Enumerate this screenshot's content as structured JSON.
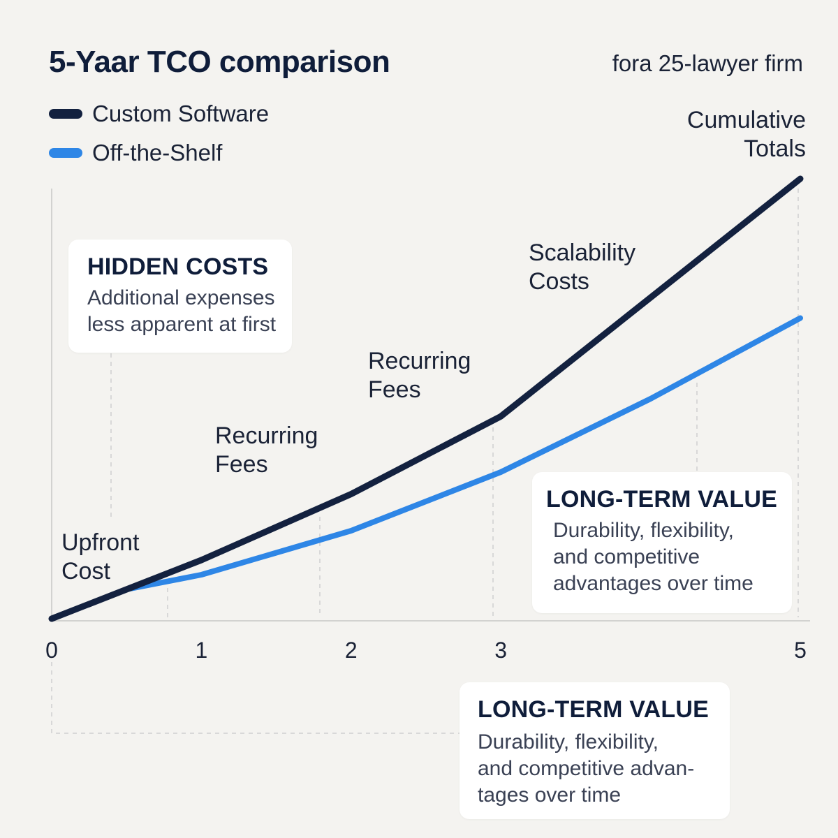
{
  "header": {
    "title": "5-Yaar TCO comparison",
    "subtitle": "fora 25-lawyer firm"
  },
  "legend": [
    {
      "label": "Custom Software",
      "color": "#13213f"
    },
    {
      "label": "Off-the-Shelf",
      "color": "#2e86e6"
    }
  ],
  "annotations": {
    "cumulative": [
      "Cumulative",
      "Totals"
    ],
    "upfront": [
      "Upfront",
      "Cost"
    ],
    "recurring_1": [
      "Recurring",
      "Fees"
    ],
    "recurring_2": [
      "Recurring",
      "Fees"
    ],
    "scalability": [
      "Scalability",
      "Costs"
    ]
  },
  "cards": {
    "hidden_costs": {
      "title": "HIDDEN COSTS",
      "body": [
        "Additional expenses",
        "less apparent at first"
      ]
    },
    "long_term_value_upper": {
      "title": "LONG-TERM VALUE",
      "body": [
        "Durability, flexibility,",
        "and competitive",
        "advantages over time"
      ]
    },
    "long_term_value_lower": {
      "title": "LONG-TERM VALUE",
      "body": [
        "Durability, flexibility,",
        "and competitive advan-",
        "tages over time"
      ]
    }
  },
  "chart_data": {
    "type": "line",
    "title": "5-Yaar TCO comparison",
    "xlabel": "",
    "ylabel": "",
    "x_ticks": [
      "0",
      "1",
      "2",
      "3",
      "5"
    ],
    "xlim": [
      0,
      5
    ],
    "ylim": [
      0,
      3
    ],
    "grid": false,
    "legend_position": "top-left",
    "series": [
      {
        "name": "Custom Software",
        "color": "#13213f",
        "points": [
          [
            0,
            0
          ],
          [
            0.5,
            0.2
          ],
          [
            1,
            0.4
          ],
          [
            2,
            0.85
          ],
          [
            3,
            1.38
          ],
          [
            5,
            3.0
          ]
        ]
      },
      {
        "name": "Off-the-Shelf",
        "color": "#2e86e6",
        "points": [
          [
            0,
            0
          ],
          [
            0.5,
            0.2
          ],
          [
            1,
            0.3
          ],
          [
            2,
            0.6
          ],
          [
            3,
            1.0
          ],
          [
            4,
            1.5
          ],
          [
            5,
            2.05
          ]
        ]
      }
    ]
  }
}
